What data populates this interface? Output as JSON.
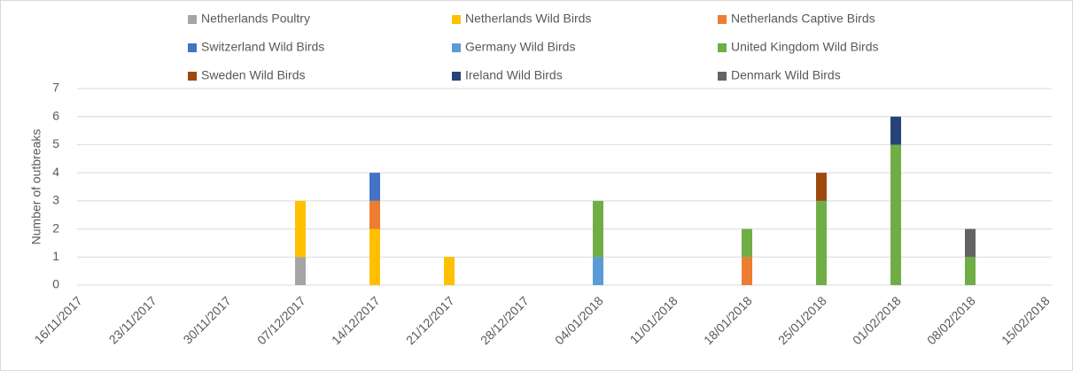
{
  "chart_data": {
    "type": "stacked_bar",
    "y_label": "Number of outbreaks",
    "categories": [
      "16/11/2017",
      "23/11/2017",
      "30/11/2017",
      "07/12/2017",
      "14/12/2017",
      "21/12/2017",
      "28/12/2017",
      "04/01/2018",
      "11/01/2018",
      "18/01/2018",
      "25/01/2018",
      "01/02/2018",
      "08/02/2018",
      "15/02/2018"
    ],
    "series": [
      {
        "name": "Netherlands Poultry",
        "color": "#a5a5a5",
        "values": [
          null,
          null,
          null,
          1,
          null,
          null,
          null,
          null,
          null,
          null,
          null,
          null,
          null,
          null
        ]
      },
      {
        "name": "Netherlands Wild Birds",
        "color": "#ffc000",
        "values": [
          null,
          null,
          null,
          2,
          2,
          1,
          null,
          null,
          null,
          null,
          null,
          null,
          null,
          null
        ]
      },
      {
        "name": "Netherlands Captive Birds",
        "color": "#ed7d31",
        "values": [
          null,
          null,
          null,
          null,
          1,
          null,
          null,
          null,
          null,
          1,
          null,
          null,
          null,
          null
        ]
      },
      {
        "name": "Switzerland Wild Birds",
        "color": "#4472c4",
        "values": [
          null,
          null,
          null,
          null,
          1,
          null,
          null,
          null,
          null,
          null,
          null,
          null,
          null,
          null
        ]
      },
      {
        "name": "Germany Wild Birds",
        "color": "#5b9bd5",
        "values": [
          null,
          null,
          null,
          null,
          null,
          null,
          null,
          1,
          null,
          null,
          null,
          null,
          null,
          null
        ]
      },
      {
        "name": "United Kingdom Wild Birds",
        "color": "#70ad47",
        "values": [
          null,
          null,
          null,
          null,
          null,
          null,
          null,
          2,
          null,
          1,
          3,
          5,
          1,
          null
        ]
      },
      {
        "name": "Sweden Wild Birds",
        "color": "#9e480e",
        "values": [
          null,
          null,
          null,
          null,
          null,
          null,
          null,
          null,
          null,
          null,
          1,
          null,
          null,
          null
        ]
      },
      {
        "name": "Ireland Wild Birds",
        "color": "#264478",
        "values": [
          null,
          null,
          null,
          null,
          null,
          null,
          null,
          null,
          null,
          null,
          null,
          1,
          null,
          null
        ]
      },
      {
        "name": "Denmark Wild Birds",
        "color": "#636363",
        "values": [
          null,
          null,
          null,
          null,
          null,
          null,
          null,
          null,
          null,
          null,
          null,
          null,
          1,
          null
        ]
      }
    ],
    "ylim": [
      0,
      7
    ],
    "yticks": [
      0,
      1,
      2,
      3,
      4,
      5,
      6,
      7
    ],
    "grid": true
  }
}
